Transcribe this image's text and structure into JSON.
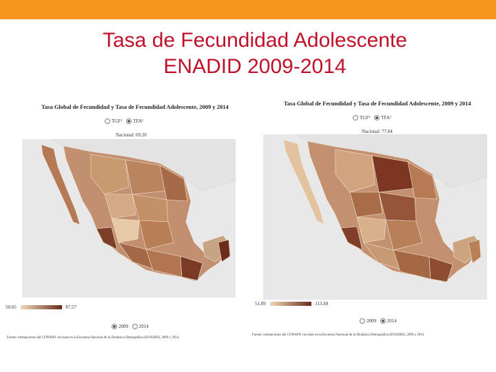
{
  "colors": {
    "topbar": "#f7941d",
    "title": "#c0102a"
  },
  "slide": {
    "title_line1": "Tasa de Fecundidad Adolescente",
    "title_line2": "ENADID 2009-2014"
  },
  "left_map": {
    "title": "Tasa Global de Fecundidad y Tasa de Fecundidad Adolescente, 2009 y 2014",
    "radio_option1": "TGF¹",
    "radio_option2": "TFA²",
    "national": "Nacional: 69.20",
    "legend_min": "50.65",
    "legend_max": "87.57",
    "year1": "2009",
    "year2": "2014",
    "source": "Fuente: estimaciones del CONAPO con base en la Encuesta Nacional de la Dinámica Demográfica (ENADID), 2009 y 2014."
  },
  "right_map": {
    "title": "Tasa Global de Fecundidad y Tasa de Fecundidad Adolescente, 2009 y 2014",
    "radio_option1": "TGF¹",
    "radio_option2": "TFA²",
    "national": "Nacional: 77.04",
    "legend_min": "51.89",
    "legend_max": "113.49",
    "year1": "2009",
    "year2": "2014",
    "source": "Fuente: estimaciones del CONAPO con base en la Encuesta Nacional de la Dinámica Demográfica (ENADID), 2009 y 2014."
  }
}
